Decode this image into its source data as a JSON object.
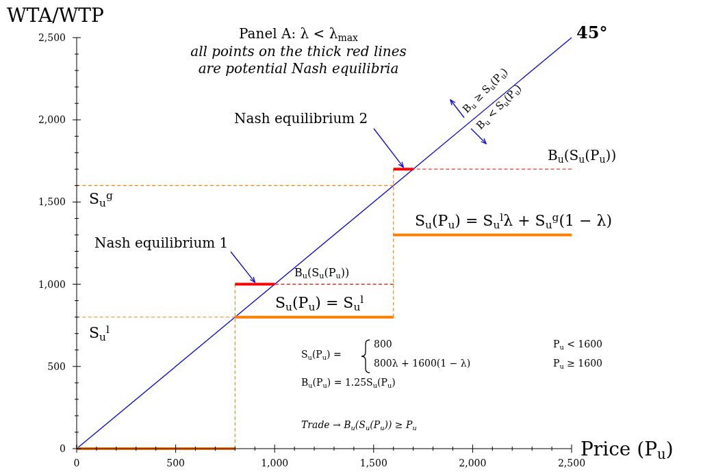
{
  "chart_data": {
    "type": "line",
    "title": "Panel A: λ < λ$_{max}$",
    "subtitle": "all points on the thick red lines are potential Nash equilibria",
    "xlabel": "Price (P$_{u}$)",
    "ylabel": "WTA/WTP",
    "xlim": [
      0,
      2500
    ],
    "ylim": [
      0,
      2500
    ],
    "xticks": [
      0,
      {
        "value": 100,
        "label": null
      },
      {
        "value": 200,
        "label": null
      },
      {
        "value": 300,
        "label": null
      },
      {
        "value": 400,
        "label": null
      },
      500,
      {
        "value": 600,
        "label": null
      },
      {
        "value": 700,
        "label": null
      },
      {
        "value": 800,
        "label": null
      },
      {
        "value": 900,
        "label": null
      },
      {
        "value": 1000,
        "label": "1,000"
      },
      {
        "value": 1100,
        "label": null
      },
      {
        "value": 1200,
        "label": null
      },
      {
        "value": 1300,
        "label": null
      },
      {
        "value": 1400,
        "label": null
      },
      {
        "value": 1500,
        "label": "1,500"
      },
      {
        "value": 1600,
        "label": null
      },
      {
        "value": 1700,
        "label": null
      },
      {
        "value": 1800,
        "label": null
      },
      {
        "value": 1900,
        "label": null
      },
      {
        "value": 2000,
        "label": "2,000"
      },
      {
        "value": 2100,
        "label": null
      },
      {
        "value": 2200,
        "label": null
      },
      {
        "value": 2300,
        "label": null
      },
      {
        "value": 2400,
        "label": null
      },
      {
        "value": 2500,
        "label": "2,500"
      }
    ],
    "yticks": [
      0,
      {
        "value": 100,
        "label": null
      },
      {
        "value": 200,
        "label": null
      },
      {
        "value": 300,
        "label": null
      },
      {
        "value": 400,
        "label": null
      },
      500,
      {
        "value": 600,
        "label": null
      },
      {
        "value": 700,
        "label": null
      },
      {
        "value": 800,
        "label": null
      },
      {
        "value": 900,
        "label": null
      },
      {
        "value": 1000,
        "label": "1,000"
      },
      {
        "value": 1100,
        "label": null
      },
      {
        "value": 1200,
        "label": null
      },
      {
        "value": 1300,
        "label": null
      },
      {
        "value": 1400,
        "label": null
      },
      {
        "value": 1500,
        "label": "1,500"
      },
      {
        "value": 1600,
        "label": null
      },
      {
        "value": 1700,
        "label": null
      },
      {
        "value": 1800,
        "label": null
      },
      {
        "value": 1900,
        "label": null
      },
      {
        "value": 2000,
        "label": "2,000"
      },
      {
        "value": 2100,
        "label": null
      },
      {
        "value": 2200,
        "label": null
      },
      {
        "value": 2300,
        "label": null
      },
      {
        "value": 2400,
        "label": null
      },
      {
        "value": 2500,
        "label": "2,500"
      }
    ],
    "series": [
      {
        "color": "#0000ff",
        "line_style": "solid",
        "x": [
          0,
          2500
        ],
        "values": [
          0,
          2500
        ]
      },
      {
        "color": "#ff8000",
        "line_style": "solid",
        "x": [
          0,
          800
        ],
        "values": [
          0,
          0
        ]
      },
      {
        "color": "#ff8000",
        "line_style": "solid",
        "x": [
          800,
          1600
        ],
        "values": [
          800,
          800
        ]
      },
      {
        "color": "#ff8000",
        "line_style": "solid",
        "x": [
          1600,
          2500
        ],
        "values": [
          1300,
          1300
        ]
      },
      {
        "color": "#ff8000",
        "line_style": "dashed",
        "x": [
          0,
          800
        ],
        "values": [
          800,
          800
        ]
      },
      {
        "color": "#ff8000",
        "line_style": "dashed",
        "x": [
          800,
          800
        ],
        "values": [
          0,
          1000
        ]
      },
      {
        "color": "#ff8000",
        "line_style": "dashed",
        "x": [
          0,
          1600
        ],
        "values": [
          1600,
          1600
        ]
      },
      {
        "color": "#ff8000",
        "line_style": "dashed",
        "x": [
          1600,
          1600
        ],
        "values": [
          800,
          1700
        ]
      },
      {
        "color": "#ff0000",
        "line_style": "dashed",
        "x": [
          800,
          1600
        ],
        "values": [
          1000,
          1000
        ]
      },
      {
        "color": "#ff0000",
        "line_style": "dashed",
        "x": [
          1600,
          2500
        ],
        "values": [
          1700,
          1700
        ]
      },
      {
        "color": "#ff0000",
        "line_style": "solid",
        "x": [
          800,
          1000
        ],
        "values": [
          1000,
          1000
        ]
      },
      {
        "color": "#ff0000",
        "line_style": "solid",
        "x": [
          1600,
          1700
        ],
        "values": [
          1700,
          1700
        ]
      }
    ],
    "annotations": [
      {
        "text": "45°",
        "x": 2500,
        "y": 2500
      },
      {
        "text": "Nash equilibrium 1",
        "x": 900,
        "y": 1000
      },
      {
        "text": "Nash equilibrium 2",
        "x": 1650,
        "y": 1700
      },
      "B$_{u}$(S$_{u}$(P$_{u}$))",
      "B$_{u}$(S$_{u}$(P$_{u}$))",
      "S$_{u}$(P$_{u}$) = S$_{u}$$^{l}$λ + S$_{u}$$^{g}$(1 − λ)",
      "S$_{u}$(P$_{u}$) = S$_{u}$$^{l}$",
      "S$_{u}$$^{g}$",
      "S$_{u}$$^{l}$",
      "B$_{u}$ ≥ S$_{u}$(P$_{u}$)",
      "B$_{u}$ < S$_{u}$(P$_{u}$)",
      "S$_{u}$(P$_{u}$) =",
      "800",
      "P$_{u}$ < 1600",
      "800λ + 1600(1 − λ)",
      "P$_{u}$ ≥ 1600",
      "B$_{u}$(P$_{u}$) = 1.25S$_{u}$(P$_{u}$)",
      "Trade → B$_{u}$(S$_{u}$(P$_{u}$)) ≥ P$_{u}$"
    ]
  }
}
